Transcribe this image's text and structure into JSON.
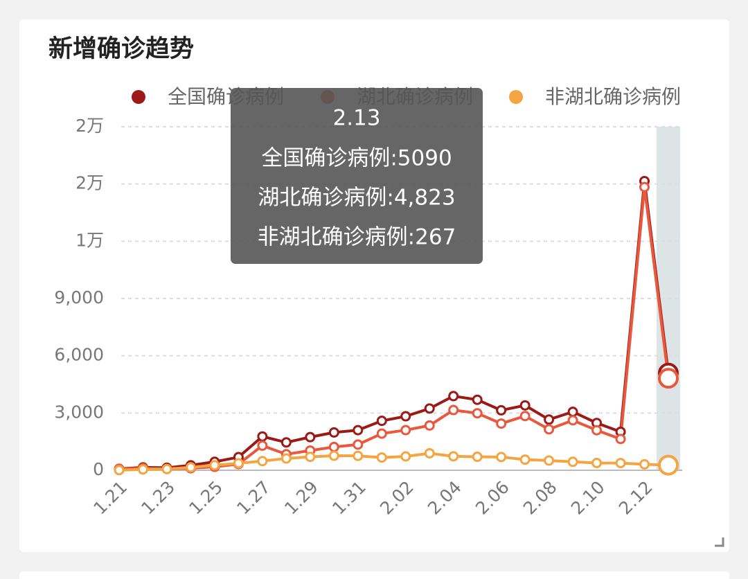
{
  "chart_data": {
    "type": "line",
    "title": "新增确诊趋势",
    "categories": [
      "1.21",
      null,
      "1.23",
      null,
      "1.25",
      null,
      "1.27",
      null,
      "1.29",
      null,
      "1.31",
      null,
      "2.02",
      null,
      "2.04",
      null,
      "2.06",
      null,
      "2.08",
      null,
      "2.10",
      null,
      "2.12",
      null
    ],
    "series": [
      {
        "name": "全国确诊病例",
        "color": "#9b1a16",
        "values": [
          77,
          149,
          131,
          259,
          444,
          688,
          1771,
          1459,
          1737,
          1982,
          2102,
          2590,
          2829,
          3235,
          3887,
          3694,
          3143,
          3399,
          2656,
          3062,
          2478,
          2015,
          15152,
          5090
        ]
      },
      {
        "name": "湖北确诊病例",
        "color": "#e8583e",
        "values": [
          72,
          105,
          69,
          105,
          180,
          323,
          1291,
          840,
          1032,
          1220,
          1347,
          1921,
          2103,
          2345,
          3156,
          2987,
          2447,
          2841,
          2147,
          2618,
          2097,
          1638,
          14840,
          4823
        ]
      },
      {
        "name": "非湖北确诊病例",
        "color": "#f4a541",
        "values": [
          5,
          44,
          62,
          154,
          264,
          365,
          480,
          619,
          705,
          762,
          755,
          669,
          726,
          890,
          731,
          707,
          696,
          558,
          509,
          444,
          381,
          377,
          312,
          267
        ]
      }
    ],
    "ylim": [
      0,
      18000
    ],
    "yticks": [
      0,
      {
        "value": 3000,
        "label": "3,000"
      },
      {
        "value": 6000,
        "label": "6,000"
      },
      {
        "value": 9000,
        "label": "9,000"
      },
      {
        "value": 12000,
        "label": "1万"
      },
      {
        "value": 15000,
        "label": "2万"
      },
      {
        "value": 18000,
        "label": "2万"
      }
    ],
    "grid": true,
    "legend": "top",
    "tooltip": {
      "title": "2.13",
      "lines": [
        "全国确诊病例:5090",
        "湖北确诊病例:4,823",
        "非湖北确诊病例:267"
      ]
    }
  }
}
